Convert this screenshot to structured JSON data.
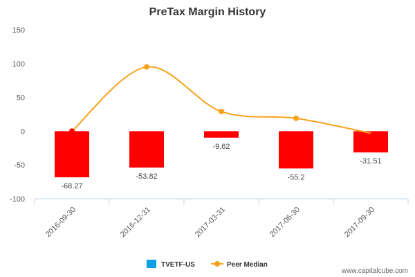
{
  "chart_data": {
    "type": "bar",
    "title": "PreTax Margin History",
    "categories": [
      "2016-09-30",
      "2016-12-31",
      "2017-03-31",
      "2017-06-30",
      "2017-09-30"
    ],
    "series": [
      {
        "name": "TVETF-US",
        "type": "bar",
        "color": "#ff0000",
        "values": [
          -68.27,
          -53.82,
          -9.62,
          -55.2,
          -31.51
        ],
        "labels": [
          "-68.27",
          "-53.82",
          "-9.62",
          "-55.2",
          "-31.51"
        ]
      },
      {
        "name": "Peer Median",
        "type": "line",
        "color": "#f7a11a",
        "values": [
          0,
          95,
          29,
          19,
          -3
        ]
      }
    ],
    "legend": [
      {
        "name": "TVETF-US",
        "color": "#0aa0e8",
        "marker": "square"
      },
      {
        "name": "Peer Median",
        "color": "#f7a11a",
        "marker": "line-dot"
      }
    ],
    "legend_position": "bottom-center",
    "ylim": [
      -100,
      150
    ],
    "yticks": [
      150,
      100,
      50,
      0,
      -50,
      -100
    ],
    "grid": false,
    "xlabel": "",
    "ylabel": ""
  },
  "footer": {
    "credit": "www.capitalcube.com"
  }
}
